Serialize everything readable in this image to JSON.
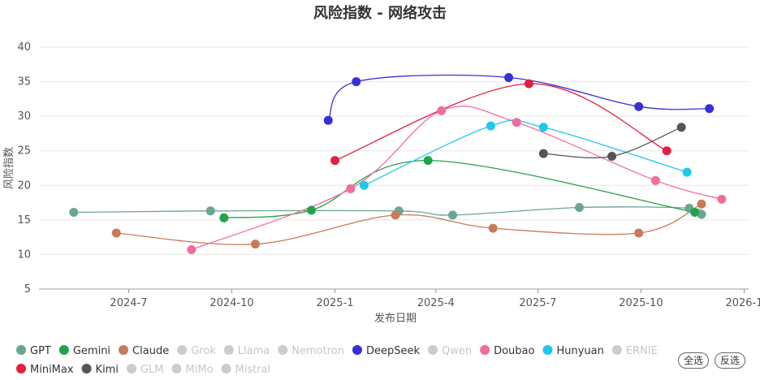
{
  "chart_data": {
    "type": "line",
    "title": "风险指数 - 网络攻击",
    "xlabel": "发布日期",
    "ylabel": "风险指数",
    "ylim": [
      5,
      40
    ],
    "yticks": [
      5,
      10,
      15,
      20,
      25,
      30,
      35,
      40
    ],
    "xlim": [
      "2024-04-12",
      "2026-01-05"
    ],
    "xticks": [
      {
        "date": "2024-07-01",
        "label": "2024-7"
      },
      {
        "date": "2024-10-01",
        "label": "2024-10"
      },
      {
        "date": "2025-01-01",
        "label": "2025-1"
      },
      {
        "date": "2025-04-01",
        "label": "2025-4"
      },
      {
        "date": "2025-07-01",
        "label": "2025-7"
      },
      {
        "date": "2025-10-01",
        "label": "2025-10"
      },
      {
        "date": "2026-01-01",
        "label": "2026-1"
      }
    ],
    "series": [
      {
        "name": "GPT",
        "color": "#6aa58f",
        "active": true,
        "points": [
          [
            "2024-05-13",
            16.1
          ],
          [
            "2024-09-12",
            16.3
          ],
          [
            "2025-02-27",
            16.3
          ],
          [
            "2025-04-16",
            15.7
          ],
          [
            "2025-08-07",
            16.8
          ],
          [
            "2025-11-13",
            16.7
          ],
          [
            "2025-11-24",
            15.8
          ]
        ]
      },
      {
        "name": "Gemini",
        "color": "#22a34a",
        "active": true,
        "points": [
          [
            "2024-09-24",
            15.3
          ],
          [
            "2024-12-11",
            16.4
          ],
          [
            "2025-03-25",
            23.6
          ],
          [
            "2025-11-18",
            16.1
          ]
        ]
      },
      {
        "name": "Claude",
        "color": "#c97a5a",
        "active": true,
        "points": [
          [
            "2024-06-20",
            13.1
          ],
          [
            "2024-10-22",
            11.5
          ],
          [
            "2025-02-24",
            15.7
          ],
          [
            "2025-05-22",
            13.8
          ],
          [
            "2025-09-29",
            13.1
          ],
          [
            "2025-11-24",
            17.3
          ]
        ]
      },
      {
        "name": "Grok",
        "color": "#cccccc",
        "active": false,
        "points": []
      },
      {
        "name": "Llama",
        "color": "#cccccc",
        "active": false,
        "points": []
      },
      {
        "name": "Nemotron",
        "color": "#cccccc",
        "active": false,
        "points": []
      },
      {
        "name": "DeepSeek",
        "color": "#3730d8",
        "active": true,
        "points": [
          [
            "2024-12-26",
            29.4
          ],
          [
            "2025-01-20",
            35.0
          ],
          [
            "2025-06-05",
            35.6
          ],
          [
            "2025-09-29",
            31.4
          ],
          [
            "2025-12-01",
            31.1
          ]
        ]
      },
      {
        "name": "Qwen",
        "color": "#cccccc",
        "active": false,
        "points": []
      },
      {
        "name": "Doubao",
        "color": "#f06ca0",
        "active": true,
        "points": [
          [
            "2024-08-26",
            10.7
          ],
          [
            "2025-01-15",
            19.5
          ],
          [
            "2025-04-06",
            30.8
          ],
          [
            "2025-06-12",
            29.1
          ],
          [
            "2025-10-14",
            20.7
          ],
          [
            "2025-12-12",
            18.0
          ]
        ]
      },
      {
        "name": "Hunyuan",
        "color": "#1ec8ec",
        "active": true,
        "points": [
          [
            "2025-01-27",
            20.0
          ],
          [
            "2025-05-20",
            28.6
          ],
          [
            "2025-07-06",
            28.4
          ],
          [
            "2025-11-11",
            21.9
          ]
        ]
      },
      {
        "name": "ERNIE",
        "color": "#cccccc",
        "active": false,
        "points": []
      },
      {
        "name": "MiniMax",
        "color": "#e02040",
        "active": true,
        "points": [
          [
            "2025-01-01",
            23.6
          ],
          [
            "2025-06-23",
            34.7
          ],
          [
            "2025-10-24",
            25.0
          ]
        ]
      },
      {
        "name": "Kimi",
        "color": "#555555",
        "active": true,
        "points": [
          [
            "2025-07-06",
            24.6
          ],
          [
            "2025-09-05",
            24.2
          ],
          [
            "2025-11-06",
            28.4
          ]
        ]
      },
      {
        "name": "GLM",
        "color": "#cccccc",
        "active": false,
        "points": []
      },
      {
        "name": "MiMo",
        "color": "#cccccc",
        "active": false,
        "points": []
      },
      {
        "name": "Mistral",
        "color": "#cccccc",
        "active": false,
        "points": []
      }
    ]
  },
  "controls": {
    "select_all": "全选",
    "invert": "反选"
  }
}
